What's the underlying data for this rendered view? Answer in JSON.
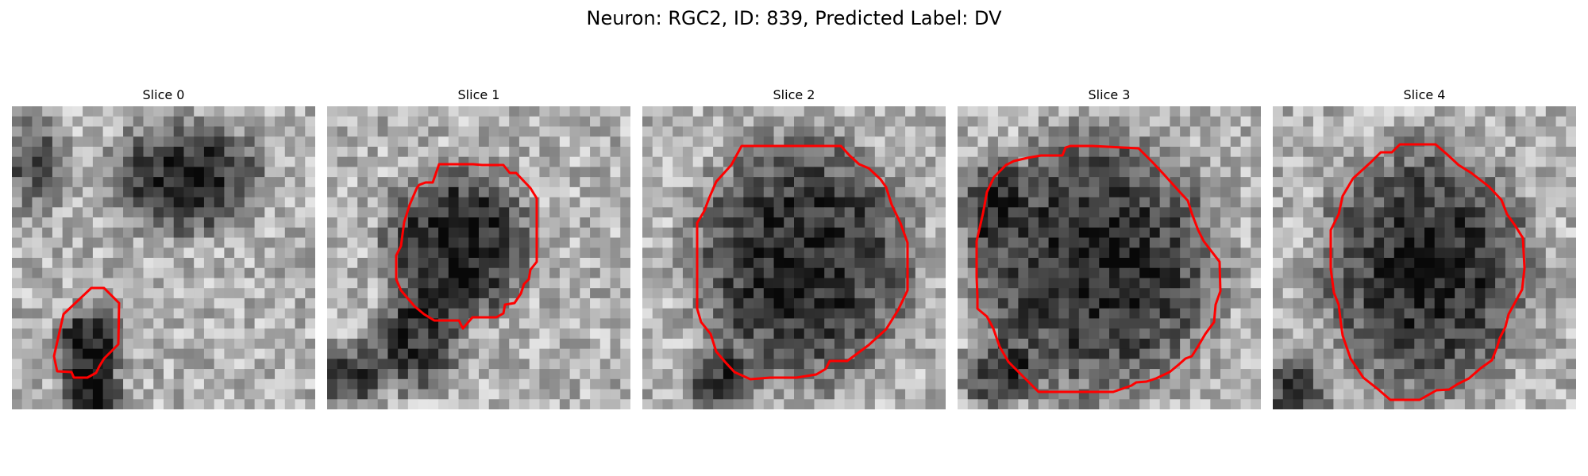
{
  "figure": {
    "title": "Neuron: RGC2, ID: 839, Predicted Label: DV",
    "contour_color": "#ff0000",
    "colormap": "gray"
  },
  "panels": [
    {
      "title": "Slice 0"
    },
    {
      "title": "Slice 1"
    },
    {
      "title": "Slice 2"
    },
    {
      "title": "Slice 3"
    },
    {
      "title": "Slice 4"
    }
  ]
}
